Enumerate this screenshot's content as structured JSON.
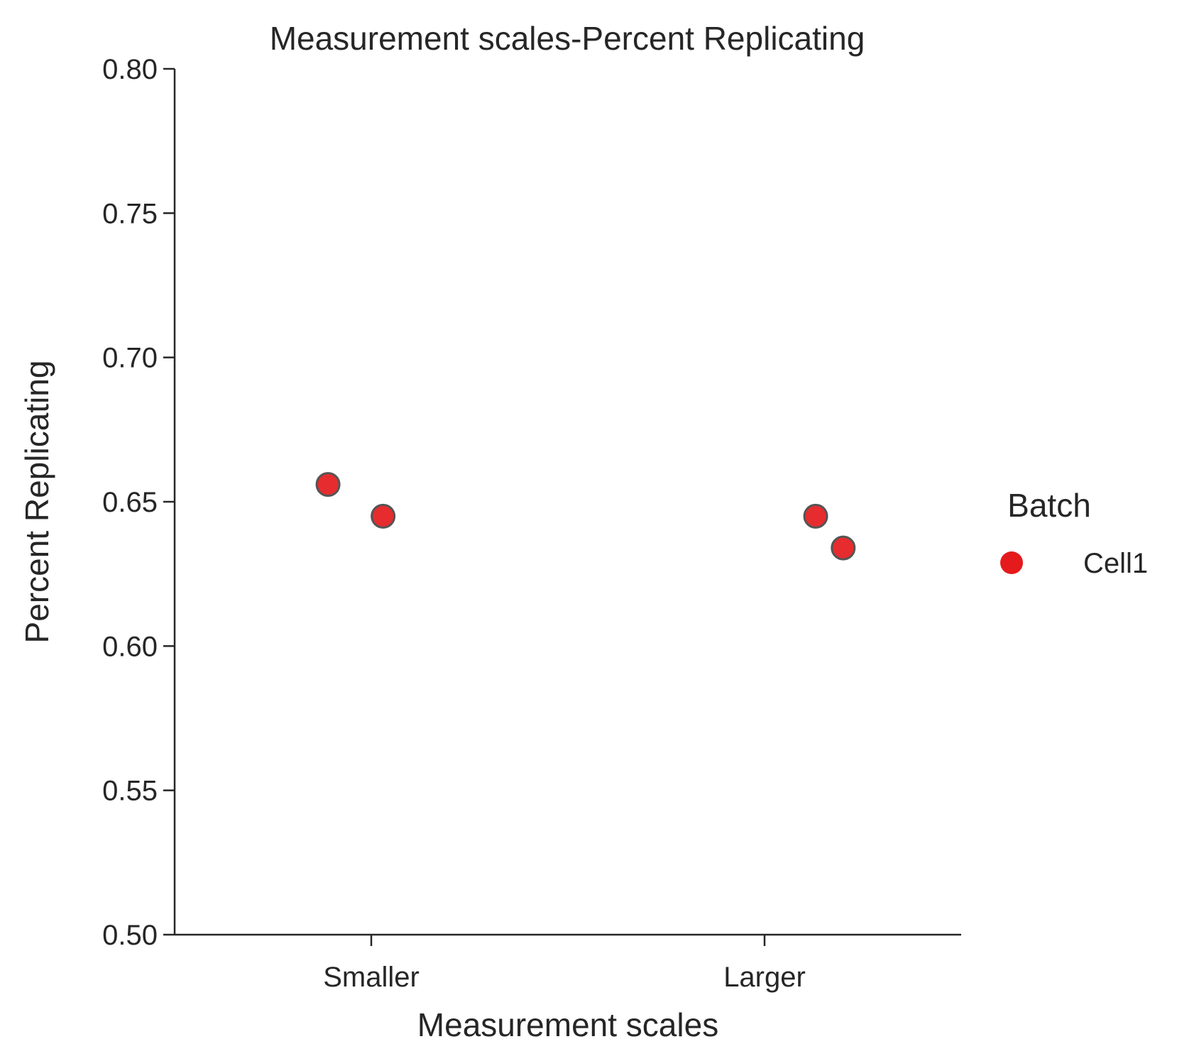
{
  "chart_data": {
    "type": "scatter",
    "title": "Measurement scales-Percent Replicating",
    "xlabel": "Measurement scales",
    "ylabel": "Percent Replicating",
    "categories": [
      "Smaller",
      "Larger"
    ],
    "ylim": [
      0.5,
      0.8
    ],
    "yticks": [
      "0.50",
      "0.55",
      "0.60",
      "0.65",
      "0.70",
      "0.75",
      "0.80"
    ],
    "grid": false,
    "legend": {
      "title": "Batch",
      "placement": "right",
      "entries": [
        {
          "label": "Cell1",
          "color": "#e41a1c"
        }
      ]
    },
    "series": [
      {
        "name": "Cell1",
        "color": "#e41a1c",
        "points": [
          {
            "category": "Smaller",
            "jitter": -0.11,
            "y": 0.656
          },
          {
            "category": "Smaller",
            "jitter": 0.03,
            "y": 0.645
          },
          {
            "category": "Larger",
            "jitter": 0.13,
            "y": 0.645
          },
          {
            "category": "Larger",
            "jitter": 0.2,
            "y": 0.634
          }
        ]
      }
    ]
  }
}
